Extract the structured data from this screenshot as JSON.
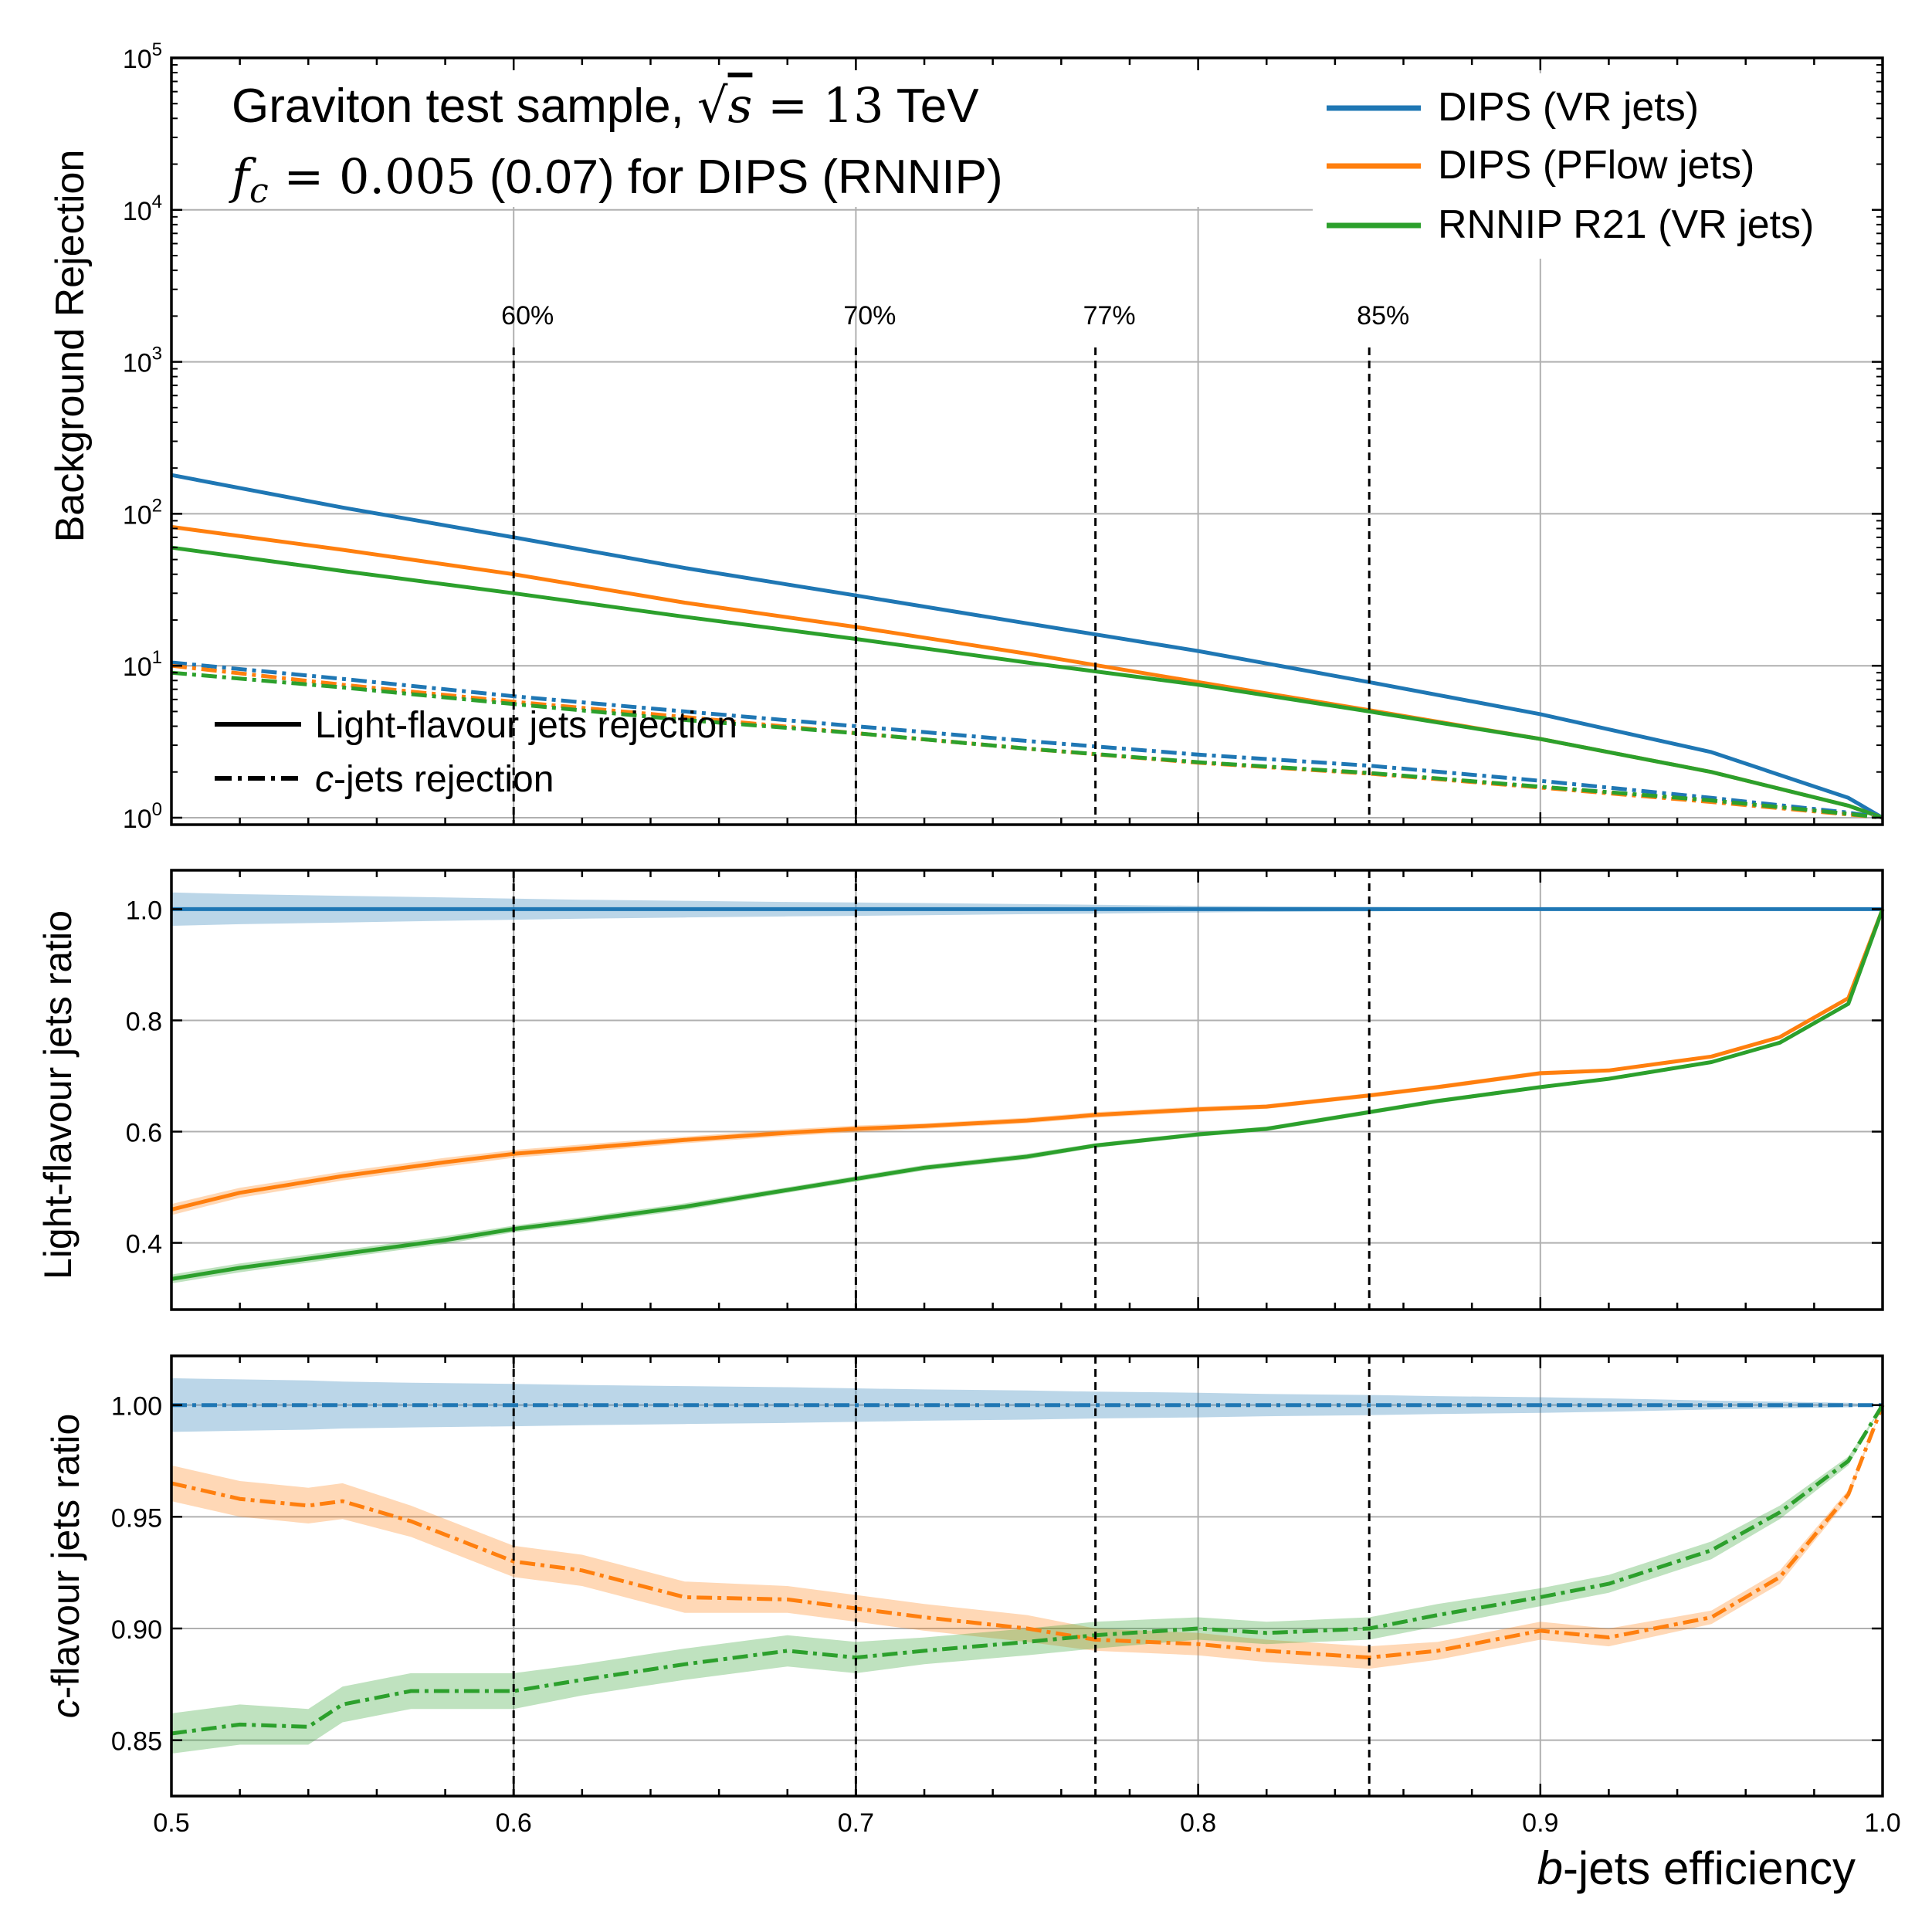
{
  "chart_data": [
    {
      "type": "line",
      "panel": "top",
      "ylabel": "Background Rejection",
      "yscale": "log",
      "ylim": [
        0.9,
        100000
      ],
      "yticks": [
        {
          "v": 1,
          "l": "10",
          "e": "0"
        },
        {
          "v": 10,
          "l": "10",
          "e": "1"
        },
        {
          "v": 100,
          "l": "10",
          "e": "2"
        },
        {
          "v": 1000,
          "l": "10",
          "e": "3"
        },
        {
          "v": 10000,
          "l": "10",
          "e": "4"
        },
        {
          "v": 100000,
          "l": "10",
          "e": "5"
        }
      ],
      "xlim": [
        0.5,
        1.0
      ],
      "grid": true,
      "title_lines": [
        "Graviton test sample, √s = 13 TeV",
        "f_c = 0.005 (0.07) for DIPS (RNNIP)"
      ],
      "title_parts": {
        "line1_a": "Graviton test sample, ",
        "line1_sqrt": "√",
        "line1_s": "s",
        "line1_b": " = 13",
        "line1_c": " TeV",
        "line2_f": "f",
        "line2_c": "c",
        "line2_b": " = 0.005",
        "line2_rest": " (0.07) for DIPS (RNNIP)"
      },
      "wp_labels": [
        "60%",
        "70%",
        "77%",
        "85%"
      ],
      "wp_values": [
        0.6,
        0.7,
        0.77,
        0.85
      ],
      "legend_series": [
        "DIPS (VR jets)",
        "DIPS (PFlow jets)",
        "RNNIP R21 (VR jets)"
      ],
      "legend_style": {
        "solid": "Light-flavour jets rejection",
        "dashdot_c": "c",
        "dashdot_rest": "-jets rejection"
      },
      "x": [
        0.5,
        0.55,
        0.6,
        0.65,
        0.7,
        0.75,
        0.8,
        0.85,
        0.9,
        0.95,
        0.99,
        1.0
      ],
      "series": [
        {
          "name": "DIPS (VR jets)",
          "style": "solid",
          "color": "#1f77b4",
          "values": [
            180,
            110,
            70,
            44,
            29,
            19,
            12.5,
            7.8,
            4.8,
            2.7,
            1.35,
            1.0
          ]
        },
        {
          "name": "DIPS (PFlow jets)",
          "style": "solid",
          "color": "#ff7f0e",
          "values": [
            82,
            58,
            40,
            26,
            18,
            12,
            7.8,
            5.1,
            3.3,
            2.0,
            1.2,
            1.0
          ]
        },
        {
          "name": "RNNIP R21 (VR jets)",
          "style": "solid",
          "color": "#2ca02c",
          "values": [
            60,
            42,
            30,
            21,
            15,
            10.5,
            7.5,
            5.0,
            3.3,
            2.0,
            1.2,
            1.0
          ]
        },
        {
          "name": "DIPS (VR jets)",
          "style": "dashdot",
          "color": "#1f77b4",
          "values": [
            10.5,
            8.2,
            6.3,
            5.0,
            4.0,
            3.2,
            2.6,
            2.2,
            1.75,
            1.35,
            1.08,
            1.0
          ]
        },
        {
          "name": "DIPS (PFlow jets)",
          "style": "dashdot",
          "color": "#ff7f0e",
          "values": [
            10.0,
            7.5,
            5.8,
            4.6,
            3.6,
            2.85,
            2.3,
            1.95,
            1.58,
            1.27,
            1.05,
            1.0
          ]
        },
        {
          "name": "RNNIP R21 (VR jets)",
          "style": "dashdot",
          "color": "#2ca02c",
          "values": [
            9.0,
            7.2,
            5.6,
            4.4,
            3.6,
            2.85,
            2.32,
            1.97,
            1.6,
            1.3,
            1.06,
            1.0
          ]
        }
      ]
    },
    {
      "type": "line",
      "panel": "middle",
      "ylabel": "Light-flavour jets ratio",
      "ylim": [
        0.28,
        1.07
      ],
      "yticks": [
        {
          "v": 0.4,
          "l": "0.4"
        },
        {
          "v": 0.6,
          "l": "0.6"
        },
        {
          "v": 0.8,
          "l": "0.8"
        },
        {
          "v": 1.0,
          "l": "1.0"
        }
      ],
      "xlim": [
        0.5,
        1.0
      ],
      "grid": true,
      "x": [
        0.5,
        0.52,
        0.55,
        0.58,
        0.6,
        0.62,
        0.65,
        0.68,
        0.7,
        0.72,
        0.75,
        0.77,
        0.8,
        0.82,
        0.85,
        0.87,
        0.9,
        0.92,
        0.95,
        0.97,
        0.99,
        1.0
      ],
      "series": [
        {
          "name": "DIPS (VR jets)",
          "style": "solid",
          "color": "#1f77b4",
          "values": [
            1.0,
            1.0,
            1.0,
            1.0,
            1.0,
            1.0,
            1.0,
            1.0,
            1.0,
            1.0,
            1.0,
            1.0,
            1.0,
            1.0,
            1.0,
            1.0,
            1.0,
            1.0,
            1.0,
            1.0,
            1.0,
            1.0
          ],
          "band": [
            0.03,
            0.027,
            0.024,
            0.021,
            0.019,
            0.017,
            0.015,
            0.013,
            0.012,
            0.011,
            0.009,
            0.008,
            0.006,
            0.005,
            0.004,
            0.003,
            0.002,
            0.002,
            0.001,
            0.001,
            0.0,
            0.0
          ]
        },
        {
          "name": "DIPS (PFlow jets)",
          "style": "solid",
          "color": "#ff7f0e",
          "values": [
            0.46,
            0.49,
            0.52,
            0.545,
            0.56,
            0.57,
            0.585,
            0.598,
            0.605,
            0.61,
            0.62,
            0.63,
            0.64,
            0.645,
            0.665,
            0.68,
            0.705,
            0.71,
            0.735,
            0.77,
            0.84,
            1.0
          ],
          "band": [
            0.01,
            0.009,
            0.008,
            0.008,
            0.007,
            0.007,
            0.006,
            0.006,
            0.006,
            0.005,
            0.005,
            0.005,
            0.005,
            0.004,
            0.004,
            0.004,
            0.004,
            0.003,
            0.003,
            0.003,
            0.002,
            0.0
          ]
        },
        {
          "name": "RNNIP R21 (VR jets)",
          "style": "solid",
          "color": "#2ca02c",
          "values": [
            0.335,
            0.355,
            0.38,
            0.405,
            0.425,
            0.44,
            0.465,
            0.495,
            0.515,
            0.535,
            0.555,
            0.575,
            0.595,
            0.605,
            0.635,
            0.655,
            0.68,
            0.695,
            0.725,
            0.76,
            0.83,
            1.0
          ],
          "band": [
            0.008,
            0.008,
            0.007,
            0.007,
            0.006,
            0.006,
            0.006,
            0.005,
            0.005,
            0.005,
            0.005,
            0.004,
            0.004,
            0.004,
            0.004,
            0.004,
            0.003,
            0.003,
            0.003,
            0.003,
            0.002,
            0.0
          ]
        }
      ]
    },
    {
      "type": "line",
      "panel": "bottom",
      "ylabel": "c-flavour jets ratio",
      "ylabel_parts": {
        "c": "c",
        "rest": "-flavour jets ratio"
      },
      "ylim": [
        0.825,
        1.022
      ],
      "yticks": [
        {
          "v": 0.85,
          "l": "0.85"
        },
        {
          "v": 0.9,
          "l": "0.90"
        },
        {
          "v": 0.95,
          "l": "0.95"
        },
        {
          "v": 1.0,
          "l": "1.00"
        }
      ],
      "xlim": [
        0.5,
        1.0
      ],
      "xticks": [
        {
          "v": 0.5,
          "l": "0.5"
        },
        {
          "v": 0.6,
          "l": "0.6"
        },
        {
          "v": 0.7,
          "l": "0.7"
        },
        {
          "v": 0.8,
          "l": "0.8"
        },
        {
          "v": 0.9,
          "l": "0.9"
        },
        {
          "v": 1.0,
          "l": "1.0"
        }
      ],
      "xlabel": "b-jets efficiency",
      "xlabel_parts": {
        "b": "b",
        "rest": "-jets efficiency"
      },
      "grid": true,
      "x": [
        0.5,
        0.52,
        0.54,
        0.55,
        0.57,
        0.6,
        0.62,
        0.65,
        0.68,
        0.7,
        0.72,
        0.75,
        0.77,
        0.8,
        0.82,
        0.85,
        0.87,
        0.9,
        0.92,
        0.95,
        0.97,
        0.99,
        1.0
      ],
      "series": [
        {
          "name": "DIPS (VR jets)",
          "style": "dashdot",
          "color": "#1f77b4",
          "values": [
            1.0,
            1.0,
            1.0,
            1.0,
            1.0,
            1.0,
            1.0,
            1.0,
            1.0,
            1.0,
            1.0,
            1.0,
            1.0,
            1.0,
            1.0,
            1.0,
            1.0,
            1.0,
            1.0,
            1.0,
            1.0,
            1.0,
            1.0
          ],
          "band": [
            0.012,
            0.0115,
            0.011,
            0.0105,
            0.01,
            0.0095,
            0.009,
            0.0085,
            0.008,
            0.0075,
            0.007,
            0.0065,
            0.006,
            0.0055,
            0.005,
            0.0045,
            0.004,
            0.0035,
            0.003,
            0.002,
            0.0015,
            0.001,
            0.0
          ]
        },
        {
          "name": "DIPS (PFlow jets)",
          "style": "dashdot",
          "color": "#ff7f0e",
          "values": [
            0.965,
            0.958,
            0.955,
            0.957,
            0.948,
            0.93,
            0.926,
            0.914,
            0.913,
            0.909,
            0.905,
            0.9,
            0.895,
            0.893,
            0.89,
            0.887,
            0.89,
            0.899,
            0.896,
            0.905,
            0.923,
            0.96,
            1.0
          ],
          "band": [
            0.008,
            0.008,
            0.008,
            0.008,
            0.007,
            0.007,
            0.007,
            0.007,
            0.006,
            0.006,
            0.006,
            0.006,
            0.005,
            0.005,
            0.005,
            0.005,
            0.004,
            0.004,
            0.004,
            0.003,
            0.003,
            0.002,
            0.0
          ]
        },
        {
          "name": "RNNIP R21 (VR jets)",
          "style": "dashdot",
          "color": "#2ca02c",
          "values": [
            0.853,
            0.857,
            0.856,
            0.866,
            0.872,
            0.872,
            0.877,
            0.884,
            0.89,
            0.887,
            0.89,
            0.894,
            0.897,
            0.9,
            0.898,
            0.9,
            0.906,
            0.914,
            0.92,
            0.935,
            0.952,
            0.975,
            1.0
          ],
          "band": [
            0.009,
            0.009,
            0.008,
            0.008,
            0.008,
            0.008,
            0.007,
            0.007,
            0.007,
            0.007,
            0.006,
            0.006,
            0.006,
            0.005,
            0.005,
            0.005,
            0.005,
            0.004,
            0.004,
            0.004,
            0.003,
            0.002,
            0.0
          ]
        }
      ]
    }
  ]
}
